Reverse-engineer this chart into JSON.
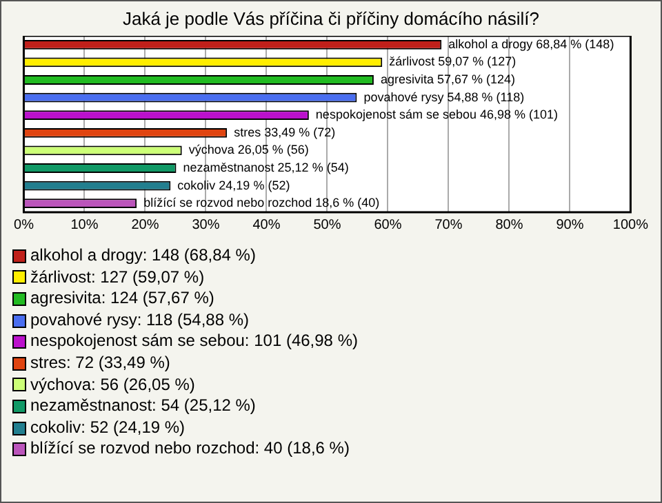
{
  "chart_data": {
    "type": "bar",
    "orientation": "horizontal",
    "title": "Jaká je podle Vás příčina či příčiny domácího násilí?",
    "categories": [
      null,
      null,
      null,
      null,
      null,
      null,
      null,
      null,
      null,
      null
    ],
    "values": [
      68.84,
      59.07,
      57.67,
      54.88,
      46.98,
      33.49,
      26.05,
      25.12,
      24.19,
      18.6
    ],
    "colors": [
      "#c0201a",
      "#ffee00",
      "#22bb22",
      "#4a6ef0",
      "#bb11cc",
      "#e04410",
      "#ccff77",
      "#119966",
      "#227f8f",
      "#bb55bb"
    ],
    "value_labels": [
      "alkohol a drogy 68,84 % (148)",
      "žárlivost 59,07 % (127)",
      "agresivita 57,67 % (124)",
      "povahové rysy 54,88 % (118)",
      "nespokojenost sám se sebou 46,98 % (101)",
      "stres 33,49 % (72)",
      "výchova 26,05 % (56)",
      "nezaměstnanost 25,12 % (54)",
      "cokoliv 24,19 % (52)",
      "blížící se rozvod nebo rozchod 18,6 % (40)"
    ],
    "xlim": [
      0,
      100
    ],
    "xticks": [
      {
        "value": 0,
        "label": "0%"
      },
      {
        "value": 10,
        "label": "10%"
      },
      {
        "value": 20,
        "label": "20%"
      },
      {
        "value": 30,
        "label": "30%"
      },
      {
        "value": 40,
        "label": "40%"
      },
      {
        "value": 50,
        "label": "50%"
      },
      {
        "value": 60,
        "label": "60%"
      },
      {
        "value": 70,
        "label": "70%"
      },
      {
        "value": 80,
        "label": "80%"
      },
      {
        "value": 90,
        "label": "90%"
      },
      {
        "value": 100,
        "label": "100%"
      }
    ],
    "grid": "x",
    "tick_labels": "x",
    "annotations": [
      "alkohol a drogy: 148 (68,84 %)",
      "žárlivost: 127 (59,07 %)",
      "agresivita: 124 (57,67 %)",
      "povahové rysy: 118 (54,88 %)",
      "nespokojenost sám se sebou: 101 (46,98 %)",
      "stres: 72 (33,49 %)",
      "výchova: 56 (26,05 %)",
      "nezaměstnanost: 54 (25,12 %)",
      "cokoliv: 52 (24,19 %)",
      "blížící se rozvod nebo rozchod: 40 (18,6 %)"
    ]
  }
}
